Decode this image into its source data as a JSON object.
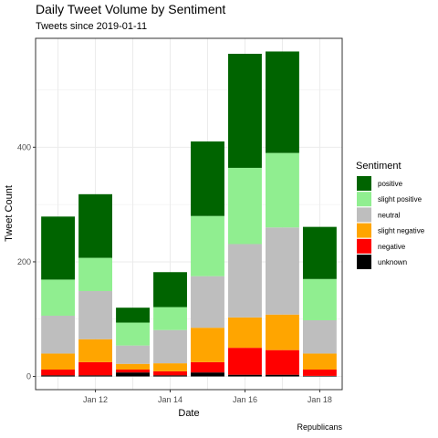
{
  "chart_data": {
    "type": "bar",
    "stacked": true,
    "title": "Daily Tweet Volume by Sentiment",
    "subtitle": "Tweets since 2019-01-11",
    "xlabel": "Date",
    "ylabel": "Tweet Count",
    "caption": "Republicans",
    "categories": [
      "2019-01-11",
      "2019-01-12",
      "2019-01-13",
      "2019-01-14",
      "2019-01-15",
      "2019-01-16",
      "2019-01-17",
      "2019-01-18"
    ],
    "x_tick_labels": [
      {
        "date": "2019-01-12",
        "label": "Jan 12"
      },
      {
        "date": "2019-01-14",
        "label": "Jan 14"
      },
      {
        "date": "2019-01-16",
        "label": "Jan 16"
      },
      {
        "date": "2019-01-18",
        "label": "Jan 18"
      }
    ],
    "ylim": [
      -23,
      590
    ],
    "y_ticks": [
      0,
      200,
      400
    ],
    "grid": true,
    "legend": {
      "title": "Sentiment",
      "placement": "right",
      "order": [
        "positive",
        "slight positive",
        "neutral",
        "slight negative",
        "negative",
        "unknown"
      ]
    },
    "series": [
      {
        "name": "unknown",
        "color": "#000000",
        "values": [
          2,
          2,
          7,
          2,
          7,
          3,
          3,
          1
        ]
      },
      {
        "name": "negative",
        "color": "#ff0000",
        "values": [
          10,
          23,
          5,
          7,
          18,
          47,
          43,
          11
        ]
      },
      {
        "name": "slight negative",
        "color": "#ffa500",
        "values": [
          28,
          40,
          10,
          14,
          60,
          53,
          62,
          28
        ]
      },
      {
        "name": "neutral",
        "color": "#bebebe",
        "values": [
          66,
          84,
          32,
          58,
          90,
          128,
          152,
          58
        ]
      },
      {
        "name": "slight positive",
        "color": "#90ee90",
        "values": [
          63,
          58,
          40,
          40,
          105,
          133,
          130,
          72
        ]
      },
      {
        "name": "positive",
        "color": "#006400",
        "values": [
          110,
          111,
          26,
          61,
          130,
          199,
          177,
          91
        ]
      }
    ]
  }
}
